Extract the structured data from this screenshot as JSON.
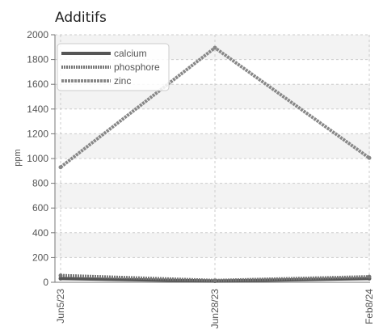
{
  "chart_data": {
    "type": "line",
    "title": "Additifs",
    "xlabel": "",
    "ylabel": "ppm",
    "categories": [
      "Jun5/23",
      "Jun28/23",
      "Feb8/24"
    ],
    "ylim": [
      0,
      2000
    ],
    "yticks": [
      0,
      200,
      400,
      600,
      800,
      1000,
      1200,
      1400,
      1600,
      1800,
      2000
    ],
    "grid": true,
    "legend_position": "top-left",
    "series": [
      {
        "name": "calcium",
        "values": [
          30,
          10,
          30
        ],
        "color": "#555555",
        "style": "solid"
      },
      {
        "name": "phosphore",
        "values": [
          55,
          15,
          45
        ],
        "color": "#777777",
        "style": "dotted"
      },
      {
        "name": "zinc",
        "values": [
          930,
          1895,
          1005
        ],
        "color": "#888888",
        "style": "dashed"
      }
    ]
  }
}
